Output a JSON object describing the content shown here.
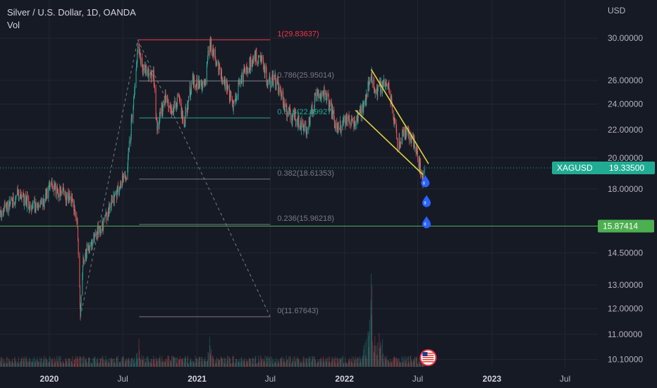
{
  "header": {
    "title": "Silver / U.S. Dollar, 1D, OANDA",
    "volume_label": "Vol"
  },
  "colors": {
    "background": "#161a25",
    "candle_up": "#26a69a",
    "candle_down": "#ef5350",
    "fib_top": "#f23645",
    "fib_618": "#22ab94",
    "fib_other": "#787b86",
    "trendline": "#e4d43b",
    "support_line": "#4caf50",
    "price_tag": "#22ab94",
    "support_tag": "#4caf50",
    "drop_icon": "#2962ff"
  },
  "chart_data": {
    "type": "candlestick",
    "symbol": "XAGUSD",
    "y_unit": "USD",
    "y_scale": "log",
    "y_range": [
      9.9,
      33.5
    ],
    "x_range": [
      "2019-09-01",
      "2023-09-20"
    ],
    "y_ticks": [
      "30.00000",
      "26.00000",
      "24.00000",
      "22.00000",
      "20.00000",
      "18.00000",
      "14.50000",
      "13.00000",
      "12.00000",
      "11.00000",
      "10.10000"
    ],
    "x_ticks": [
      "2020",
      "Jul",
      "2021",
      "Jul",
      "2022",
      "Jul",
      "2023",
      "Jul"
    ],
    "price_path": [
      [
        "2019-09-01",
        16.6
      ],
      [
        "2019-10-15",
        17.6
      ],
      [
        "2019-11-20",
        17.0
      ],
      [
        "2019-12-10",
        17.0
      ],
      [
        "2020-01-05",
        18.2
      ],
      [
        "2020-02-10",
        17.6
      ],
      [
        "2020-02-28",
        17.3
      ],
      [
        "2020-03-10",
        16.3
      ],
      [
        "2020-03-18",
        11.8
      ],
      [
        "2020-03-25",
        14.3
      ],
      [
        "2020-04-20",
        15.3
      ],
      [
        "2020-05-15",
        16.0
      ],
      [
        "2020-06-15",
        17.8
      ],
      [
        "2020-07-10",
        19.0
      ],
      [
        "2020-07-20",
        21.5
      ],
      [
        "2020-08-07",
        29.0
      ],
      [
        "2020-08-20",
        27.0
      ],
      [
        "2020-09-15",
        26.5
      ],
      [
        "2020-09-24",
        22.0
      ],
      [
        "2020-10-15",
        24.5
      ],
      [
        "2020-11-01",
        23.5
      ],
      [
        "2020-11-15",
        24.5
      ],
      [
        "2020-11-30",
        22.5
      ],
      [
        "2020-12-20",
        26.0
      ],
      [
        "2021-01-20",
        25.5
      ],
      [
        "2021-02-01",
        29.5
      ],
      [
        "2021-02-25",
        27.0
      ],
      [
        "2021-03-31",
        24.0
      ],
      [
        "2021-04-20",
        26.0
      ],
      [
        "2021-05-20",
        28.0
      ],
      [
        "2021-06-10",
        28.0
      ],
      [
        "2021-06-25",
        26.0
      ],
      [
        "2021-07-15",
        26.0
      ],
      [
        "2021-08-10",
        23.5
      ],
      [
        "2021-09-30",
        22.0
      ],
      [
        "2021-10-20",
        24.5
      ],
      [
        "2021-11-15",
        25.0
      ],
      [
        "2021-12-15",
        22.0
      ],
      [
        "2022-01-10",
        23.0
      ],
      [
        "2022-01-28",
        22.5
      ],
      [
        "2022-02-20",
        24.0
      ],
      [
        "2022-03-08",
        26.5
      ],
      [
        "2022-03-20",
        25.0
      ],
      [
        "2022-04-18",
        26.0
      ],
      [
        "2022-05-13",
        20.8
      ],
      [
        "2022-05-30",
        22.0
      ],
      [
        "2022-06-15",
        21.5
      ],
      [
        "2022-06-30",
        20.3
      ],
      [
        "2022-07-14",
        18.4
      ],
      [
        "2022-07-18",
        19.3
      ]
    ],
    "volume_spikes": [
      [
        "2020-08-10",
        "high"
      ],
      [
        "2021-02-01",
        "high"
      ],
      [
        "2022-03-08",
        "highest"
      ]
    ],
    "last_price": {
      "label": "XAGUSD",
      "value": "19.33500"
    },
    "support_level": {
      "value": "15.87414"
    },
    "fibonacci": {
      "from": [
        "2020-03-18",
        11.67643
      ],
      "to": [
        "2020-08-07",
        29.83637
      ],
      "end_date": "2021-07-01",
      "levels": [
        {
          "label": "1(29.83637)",
          "value": 29.83637,
          "color": "#f23645"
        },
        {
          "label": "0.786(25.95014)",
          "value": 25.95014,
          "color": "#787b86"
        },
        {
          "label": "0.618(22.89927)",
          "value": 22.89927,
          "color": "#22ab94"
        },
        {
          "label": "0.382(18.61353)",
          "value": 18.61353,
          "color": "#787b86"
        },
        {
          "label": "0.236(15.96218)",
          "value": 15.96218,
          "color": "#787b86"
        },
        {
          "label": "0(11.67643)",
          "value": 11.67643,
          "color": "#787b86"
        }
      ]
    },
    "trendlines": [
      {
        "from": [
          "2022-03-08",
          27.0
        ],
        "to": [
          "2022-07-28",
          19.6
        ]
      },
      {
        "from": [
          "2022-01-28",
          23.5
        ],
        "to": [
          "2022-07-14",
          18.9
        ]
      }
    ],
    "drop_icons": [
      [
        "2022-07-20",
        18.5
      ],
      [
        "2022-07-23",
        17.3
      ],
      [
        "2022-07-23",
        16.1
      ]
    ],
    "flag_icon": "us-flag-icon"
  }
}
